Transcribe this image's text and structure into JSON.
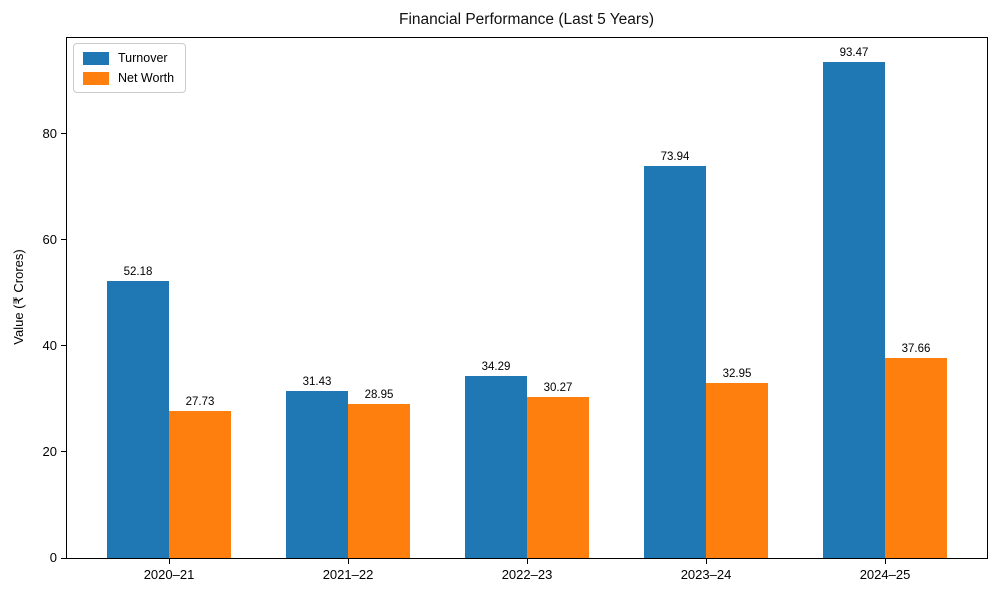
{
  "title": "Financial Performance (Last 5 Years)",
  "colors": {
    "turnover": "#1f77b4",
    "net_worth": "#ff7f0e",
    "spine": "#000000",
    "background": "#ffffff",
    "legend_border": "#cccccc",
    "text": "#000000"
  },
  "legend": {
    "position": "upper left",
    "items": [
      {
        "label": "Turnover",
        "color": "#1f77b4"
      },
      {
        "label": "Net Worth",
        "color": "#ff7f0e"
      }
    ]
  },
  "chart_data": {
    "type": "bar",
    "title": "Financial Performance (Last 5 Years)",
    "categories": [
      "2020–21",
      "2021–22",
      "2022–23",
      "2023–24",
      "2024–25"
    ],
    "series": [
      {
        "name": "Turnover",
        "color": "#1f77b4",
        "values": [
          52.18,
          31.43,
          34.29,
          73.94,
          93.47
        ]
      },
      {
        "name": "Net Worth",
        "color": "#ff7f0e",
        "values": [
          27.73,
          28.95,
          30.27,
          32.95,
          37.66
        ]
      }
    ],
    "xlabel": "",
    "ylabel": "Value (₹ Crores)",
    "ylim": [
      0,
      98
    ],
    "yticks": [
      0,
      20,
      40,
      60,
      80
    ],
    "grid": false,
    "legend_position": "upper left",
    "bar_labels": true,
    "bar_label_format": "2-decimals"
  }
}
